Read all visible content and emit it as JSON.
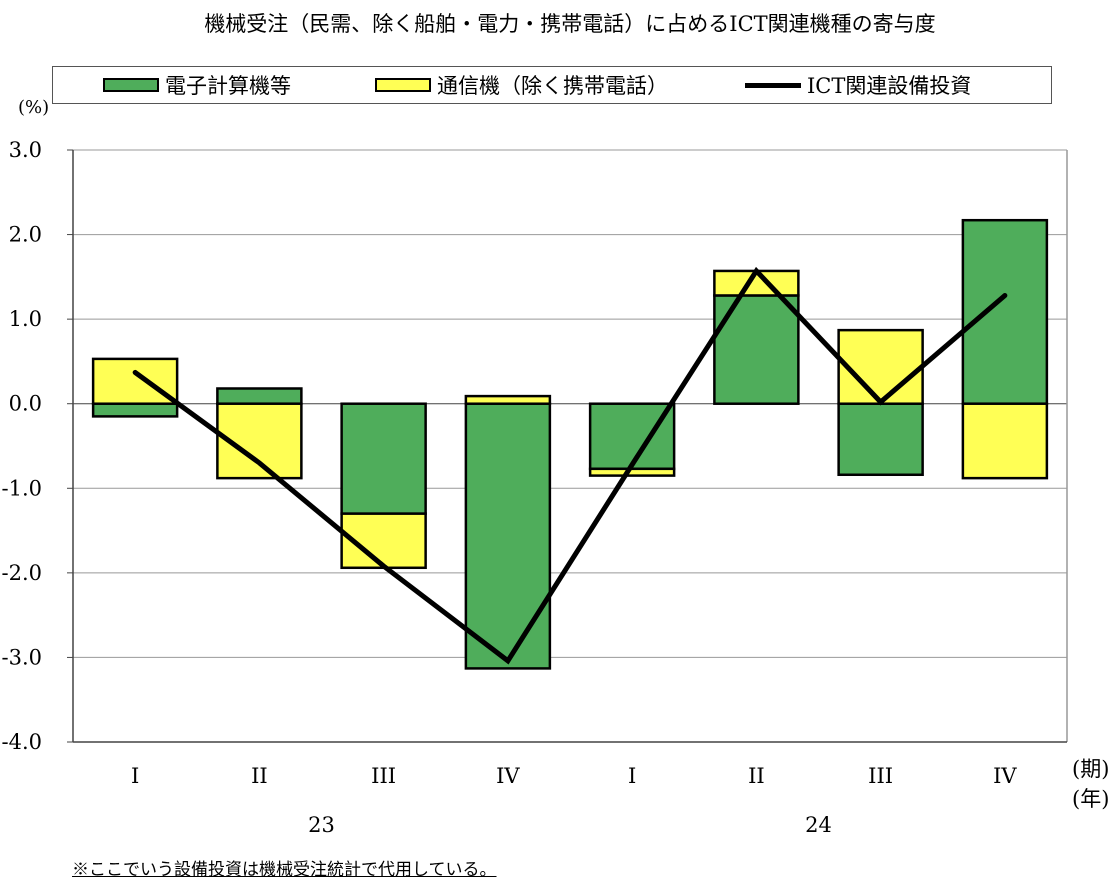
{
  "chart_data": {
    "type": "bar",
    "title": "機械受注（民需、除く船舶・電力・携帯電話）に占めるICT関連機種の寄与度",
    "ylabel": "(%)",
    "xlabel": "(期)",
    "year_label": "(年)",
    "ylim": [
      -4.0,
      3.0
    ],
    "yticks": [
      "3.0",
      "2.0",
      "1.0",
      "0.0",
      "-1.0",
      "-2.0",
      "-3.0",
      "-4.0"
    ],
    "ytick_values": [
      3,
      2,
      1,
      0,
      -1,
      -2,
      -3,
      -4
    ],
    "categories": [
      "I",
      "II",
      "III",
      "IV",
      "I",
      "II",
      "III",
      "IV"
    ],
    "years": [
      {
        "label": "23",
        "from": 0,
        "to": 3
      },
      {
        "label": "24",
        "from": 4,
        "to": 7
      }
    ],
    "grid": true,
    "legend_placement": "top",
    "series": [
      {
        "name": "電子計算機等",
        "kind": "stacked-bar",
        "color": "#4fad5b",
        "values": [
          -0.15,
          0.18,
          -1.3,
          -3.13,
          -0.77,
          1.28,
          -0.84,
          2.17
        ]
      },
      {
        "name": "通信機（除く携帯電話）",
        "kind": "stacked-bar",
        "color": "#ffff55",
        "values": [
          0.53,
          -0.88,
          -0.64,
          0.09,
          -0.08,
          0.29,
          0.87,
          -0.88
        ]
      },
      {
        "name": "ICT関連設備投資",
        "kind": "line",
        "color": "#000000",
        "values": [
          0.37,
          -0.7,
          -1.92,
          -3.04,
          -0.72,
          1.57,
          0.02,
          1.28
        ]
      }
    ]
  },
  "footnote": "※ここでいう設備投資は機械受注統計で代用している。"
}
